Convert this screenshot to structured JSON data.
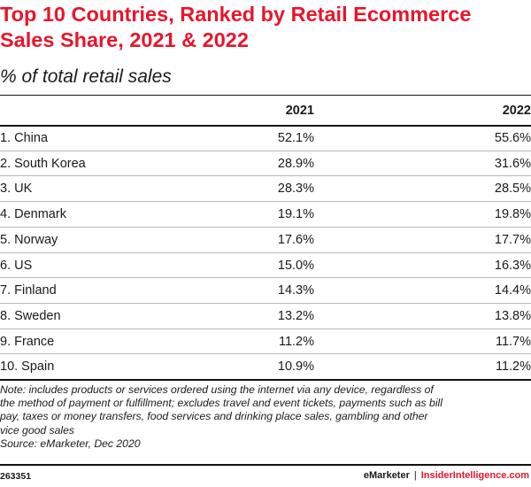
{
  "title": "Top 10 Countries, Ranked by Retail Ecommerce Sales Share, 2021 & 2022",
  "title_lines": [
    "Top 10 Countries, Ranked by Retail Ecommerce",
    "Sales Share, 2021 & 2022"
  ],
  "subtitle": "% of total retail sales",
  "colors": {
    "title": "#e8152b",
    "text": "#1a1a1a",
    "brand_accent": "#e8152b",
    "row_divider": "#b9b9b9"
  },
  "chart_data": {
    "type": "table",
    "title": "Top 10 Countries, Ranked by Retail Ecommerce Sales Share, 2021 & 2022",
    "subtitle": "% of total retail sales",
    "columns": [
      "",
      "2021",
      "2022"
    ],
    "rows": [
      {
        "country": "1. China",
        "y2021": "52.1%",
        "y2022": "55.6%"
      },
      {
        "country": "2. South Korea",
        "y2021": "28.9%",
        "y2022": "31.6%"
      },
      {
        "country": "3. UK",
        "y2021": "28.3%",
        "y2022": "28.5%"
      },
      {
        "country": "4. Denmark",
        "y2021": "19.1%",
        "y2022": "19.8%"
      },
      {
        "country": "5. Norway",
        "y2021": "17.6%",
        "y2022": "17.7%"
      },
      {
        "country": "6. US",
        "y2021": "15.0%",
        "y2022": "16.3%"
      },
      {
        "country": "7. Finland",
        "y2021": "14.3%",
        "y2022": "14.4%"
      },
      {
        "country": "8. Sweden",
        "y2021": "13.2%",
        "y2022": "13.8%"
      },
      {
        "country": "9. France",
        "y2021": "11.2%",
        "y2022": "11.7%"
      },
      {
        "country": "10. Spain",
        "y2021": "10.9%",
        "y2022": "11.2%"
      }
    ],
    "series": [
      {
        "name": "2021",
        "values": [
          52.1,
          28.9,
          28.3,
          19.1,
          17.6,
          15.0,
          14.3,
          13.2,
          11.2,
          10.9
        ]
      },
      {
        "name": "2022",
        "values": [
          55.6,
          31.6,
          28.5,
          19.8,
          17.7,
          16.3,
          14.4,
          13.8,
          11.7,
          11.2
        ]
      }
    ]
  },
  "note_lines": [
    "Note: includes products or services ordered using the internet via any device, regardless of",
    "the method of payment or fulfillment; excludes travel and event tickets, payments such as bill",
    "pay, taxes or money transfers, food services and drinking place sales, gambling and other",
    "vice good sales",
    "Source: eMarketer, Dec 2020"
  ],
  "footer": {
    "chart_id": "263351",
    "brand_left": "eMarketer",
    "separator": "|",
    "brand_right": "InsiderIntelligence.com"
  }
}
